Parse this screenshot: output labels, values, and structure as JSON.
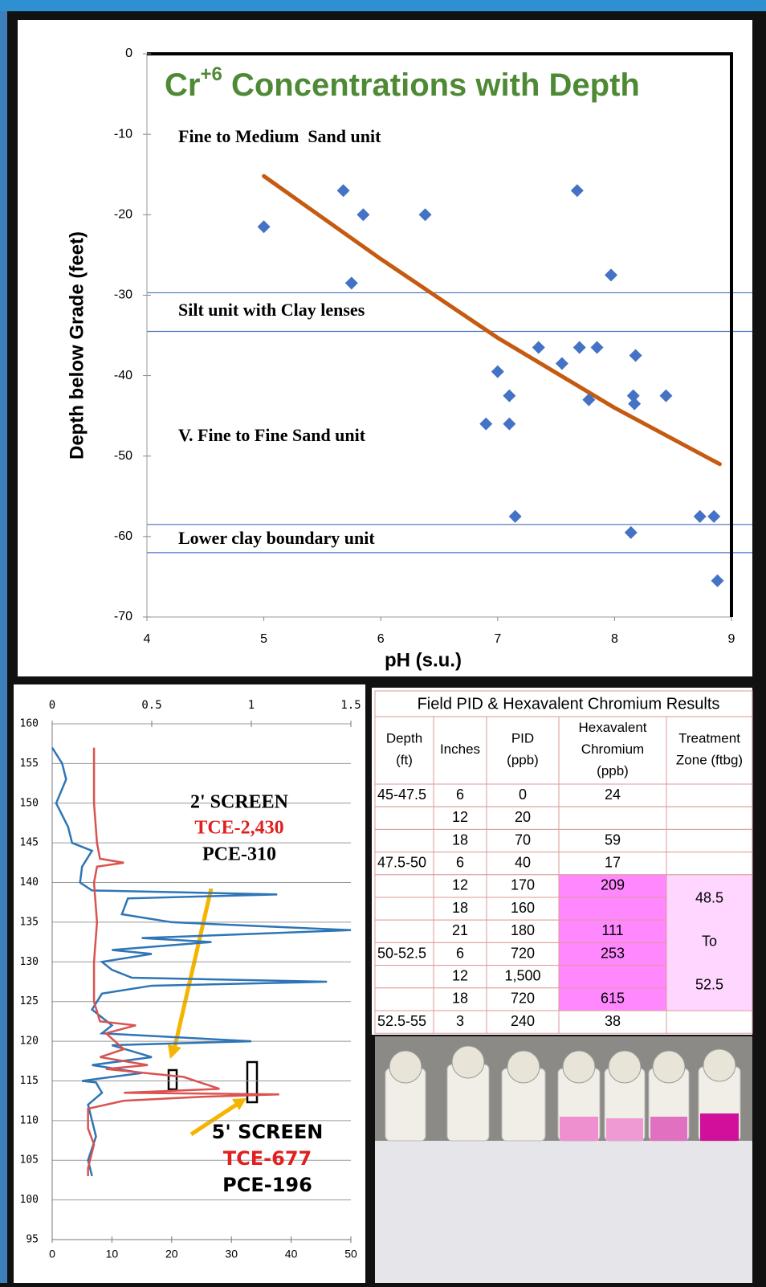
{
  "chart_data": [
    {
      "type": "scatter",
      "title": {
        "base": "Cr",
        "sup": "+6",
        "rest": " Concentrations with Depth"
      },
      "xlabel": "pH (s.u.)",
      "ylabel": "Depth below Grade (feet)",
      "xlim": [
        4,
        9
      ],
      "xticks": [
        4,
        5,
        6,
        7,
        8,
        9
      ],
      "ylim": [
        -70,
        0
      ],
      "yticks": [
        0,
        -10,
        -20,
        -30,
        -40,
        -50,
        -60,
        -70
      ],
      "color": "#4472c4",
      "x": [
        5.0,
        5.68,
        5.85,
        5.75,
        6.38,
        7.68,
        7.97,
        7.35,
        7.55,
        7.7,
        7.85,
        8.18,
        7.0,
        7.1,
        7.78,
        8.16,
        8.17,
        8.44,
        6.9,
        7.1,
        7.15,
        8.14,
        8.73,
        8.85,
        8.88
      ],
      "values": [
        -21.5,
        -17,
        -20,
        -28.5,
        -20,
        -17,
        -27.5,
        -36.5,
        -38.5,
        -36.5,
        -36.5,
        -37.5,
        -39.5,
        -42.5,
        -43,
        -42.5,
        -43.5,
        -42.5,
        -46,
        -46,
        -57.5,
        -59.5,
        -57.5,
        -57.5,
        -65.5
      ],
      "trendline": {
        "color": "#c55a11",
        "x": [
          5.0,
          6.0,
          7.0,
          8.0,
          8.9
        ],
        "values": [
          -15.2,
          -25.5,
          -35.3,
          -44.0,
          -51.0
        ]
      },
      "boundaries": {
        "color": "#4472c4",
        "values": [
          -29.7,
          -34.5,
          -58.5,
          -62
        ]
      },
      "annotations": [
        "Fine to Medium  Sand unit",
        "Silt unit with Clay lenses",
        "V. Fine to Fine Sand unit",
        "Lower clay boundary unit"
      ]
    },
    {
      "type": "line",
      "xlim": [
        0,
        1.5
      ],
      "xticks": [
        0,
        0.5,
        1,
        1.5
      ],
      "x2lim": [
        0,
        50
      ],
      "x2ticks": [
        0,
        10,
        20,
        30,
        40,
        50
      ],
      "ylim": [
        95,
        160
      ],
      "yticks": [
        95,
        100,
        105,
        110,
        115,
        120,
        125,
        130,
        135,
        140,
        145,
        150,
        155,
        160
      ],
      "grid": true,
      "series": [
        {
          "color": "#2e75b6",
          "axis": "x",
          "values": [
            0.0,
            0.05,
            0.07,
            0.02,
            0.08,
            0.1,
            0.2,
            0.15,
            0.14,
            0.2,
            1.13,
            0.38,
            0.35,
            0.6,
            1.5,
            0.45,
            0.8,
            0.3,
            0.5,
            0.25,
            0.3,
            0.4,
            1.38,
            0.5,
            0.25,
            0.2,
            0.3,
            0.25,
            1.0,
            0.3,
            0.5,
            0.2,
            0.45,
            0.15,
            0.22,
            0.25,
            0.18,
            0.2,
            0.22,
            0.18,
            0.2
          ],
          "depth": [
            157,
            155,
            153,
            150,
            147,
            145,
            144,
            142,
            140,
            139,
            138.5,
            138,
            136,
            135,
            134,
            133,
            132.5,
            131.5,
            131,
            130,
            129,
            128,
            127.5,
            127,
            126,
            124,
            122,
            121,
            120,
            119.5,
            118,
            117,
            116,
            115,
            114.8,
            113.5,
            112,
            110,
            108,
            105,
            103
          ]
        },
        {
          "color": "#d9534f",
          "axis": "x2",
          "values": [
            7,
            7,
            7.5,
            8,
            12,
            7.5,
            7,
            7.5,
            7,
            7,
            8,
            14,
            9,
            12,
            8,
            16,
            9,
            22,
            28,
            12,
            38,
            25,
            12,
            6,
            6,
            7,
            6,
            6
          ],
          "depth": [
            157,
            150,
            145,
            143,
            142.5,
            142,
            140,
            135,
            130,
            125,
            122.5,
            122,
            121,
            119,
            118,
            117,
            116.5,
            115.5,
            114,
            113.5,
            113.3,
            113,
            112.5,
            111.5,
            109,
            107,
            104,
            103
          ]
        }
      ],
      "annotations": [
        {
          "text": "2' SCREEN",
          "color": "#000000"
        },
        {
          "text": "TCE-2,430",
          "color": "#e02020"
        },
        {
          "text": "PCE-310",
          "color": "#000000"
        },
        {
          "text": "5' SCREEN",
          "color": "#000000"
        },
        {
          "text": "TCE-677",
          "color": "#e02020"
        },
        {
          "text": "PCE-196",
          "color": "#000000"
        }
      ]
    }
  ],
  "table": {
    "title": "Field PID & Hexavalent Chromium Results",
    "header": [
      "Depth (ft)",
      "Inches",
      "PID (ppb)",
      "Hexavalent Chromium (ppb)",
      "Treatment Zone (ftbg)"
    ],
    "rows": [
      [
        "45-47.5",
        "6",
        "0",
        "24"
      ],
      [
        null,
        "12",
        "20",
        null
      ],
      [
        null,
        "18",
        "70",
        "59"
      ],
      [
        "47.5-50",
        "6",
        "40",
        "17"
      ],
      [
        null,
        "12",
        "170",
        "209"
      ],
      [
        null,
        "18",
        "160",
        null
      ],
      [
        null,
        "21",
        "180",
        "111"
      ],
      [
        "50-52.5",
        "6",
        "720",
        "253"
      ],
      [
        null,
        "12",
        "1,500",
        null
      ],
      [
        null,
        "18",
        "720",
        "615"
      ],
      [
        "52.5-55",
        "3",
        "240",
        "38"
      ]
    ],
    "treatment_zone": [
      "48.5",
      "To",
      "52.5"
    ]
  }
}
